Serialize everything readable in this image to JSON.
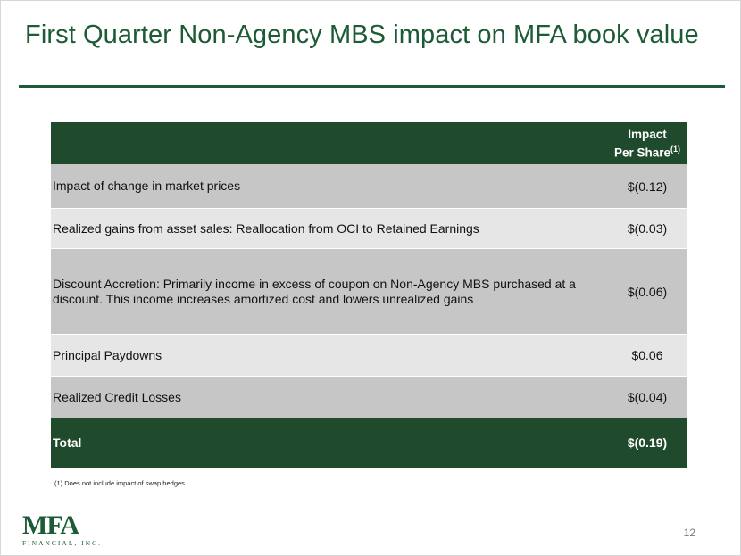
{
  "title": "First Quarter Non-Agency MBS impact on MFA book value",
  "table": {
    "header": {
      "desc": "",
      "value_line1": "Impact",
      "value_line2": "Per Share",
      "value_sup": "(1)"
    },
    "rows": [
      {
        "desc": "Impact of change in market prices",
        "value": "$(0.12)"
      },
      {
        "desc": "Realized gains from asset sales: Reallocation from OCI to Retained Earnings",
        "value": "$(0.03)"
      },
      {
        "desc": "Discount Accretion: Primarily income in excess of coupon on Non-Agency MBS purchased at a discount. This income increases amortized cost and lowers unrealized gains",
        "value": "$(0.06)"
      },
      {
        "desc": "Principal Paydowns",
        "value": "$0.06"
      },
      {
        "desc": "Realized Credit Losses",
        "value": "$(0.04)"
      }
    ],
    "total": {
      "desc": "Total",
      "value": "$(0.19)"
    }
  },
  "footnote": "(1) Does not include impact of  swap hedges.",
  "logo": {
    "mark": "MFA",
    "sub": "FINANCIAL, INC."
  },
  "page_number": "12",
  "colors": {
    "brand_green": "#1d5a36",
    "header_green": "#1f4a2c",
    "row_dark": "#c6c6c6",
    "row_light": "#e6e6e6"
  }
}
